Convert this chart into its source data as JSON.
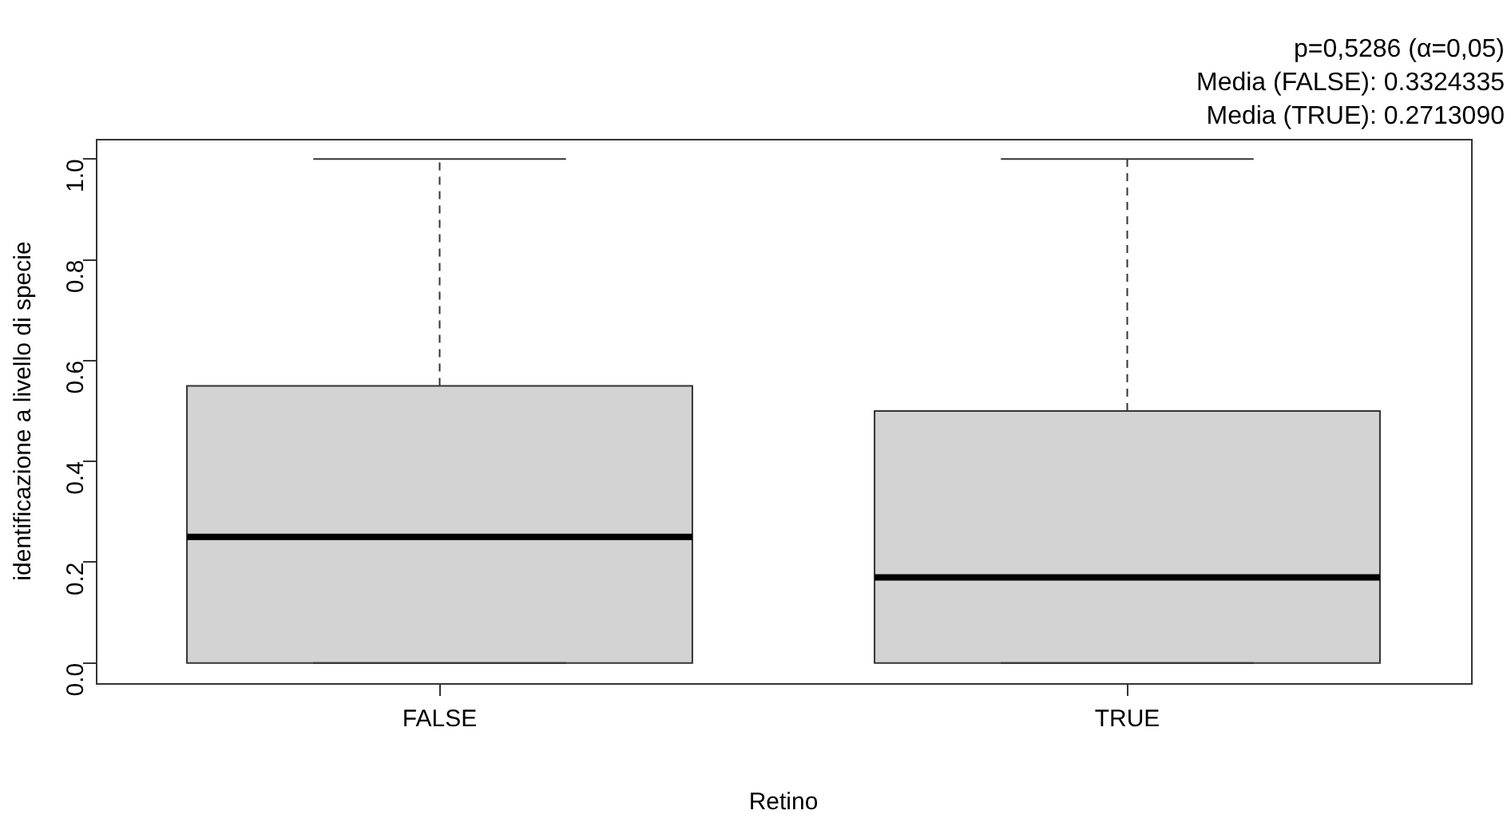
{
  "chart_data": {
    "type": "box",
    "xlabel": "Retino",
    "ylabel": "identificazione a livello di specie",
    "categories": [
      "FALSE",
      "TRUE"
    ],
    "boxes": [
      {
        "low": 0,
        "q1": 0,
        "median": 0.25,
        "q3": 0.55,
        "high": 1
      },
      {
        "low": 0,
        "q1": 0,
        "median": 0.17,
        "q3": 0.5,
        "high": 1
      }
    ],
    "color": "#d3d3d3",
    "ylim": [
      -0.04,
      1.04
    ],
    "yticks": [
      {
        "value": 0,
        "label": "0.0"
      },
      {
        "value": 0.2,
        "label": "0.2"
      },
      {
        "value": 0.4,
        "label": "0.4"
      },
      {
        "value": 0.6,
        "label": "0.6"
      },
      {
        "value": 0.8,
        "label": "0.8"
      },
      {
        "value": 1,
        "label": "1.0"
      }
    ],
    "grid": false,
    "legend": false,
    "annotations": [
      "p=0,5286 (α=0,05)",
      "Media (FALSE): 0.3324335",
      "Media (TRUE): 0.2713090"
    ]
  }
}
